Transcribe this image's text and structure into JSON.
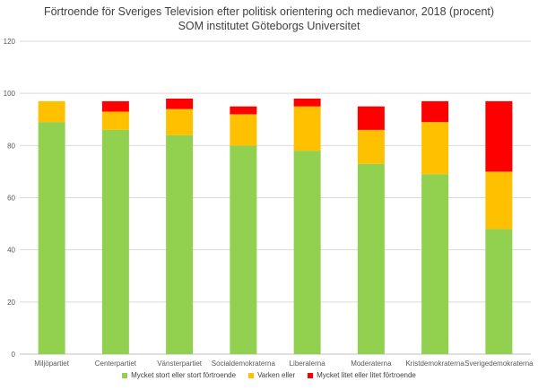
{
  "chart_data": {
    "type": "bar",
    "stacked": true,
    "title": "Förtroende för Sveriges Television efter politisk orientering och medievanor, 2018 (procent)",
    "subtitle": "SOM institutet Göteborgs Universitet",
    "xlabel": "",
    "ylabel": "",
    "ylim": [
      0,
      120
    ],
    "yticks": [
      0,
      20,
      40,
      60,
      80,
      100,
      120
    ],
    "grid": true,
    "legend_position": "bottom",
    "categories": [
      "Miljöpartiet",
      "Centerpartiet",
      "Vänsterpartiet",
      "Socialdemokraterna",
      "Liberalerna",
      "Moderaterna",
      "Kristdemokraterna",
      "Sverigedemokraterna"
    ],
    "series": [
      {
        "name": "Mycket stort eller stort förtroende",
        "color": "#92d050",
        "values": [
          89,
          86,
          84,
          80,
          78,
          73,
          69,
          48
        ]
      },
      {
        "name": "Varken eller",
        "color": "#ffc000",
        "values": [
          8,
          7,
          10,
          12,
          17,
          13,
          20,
          22
        ]
      },
      {
        "name": "Mycket litet eller litet förtroende",
        "color": "#ff0000",
        "values": [
          0,
          4,
          4,
          3,
          3,
          9,
          8,
          27
        ]
      }
    ]
  }
}
